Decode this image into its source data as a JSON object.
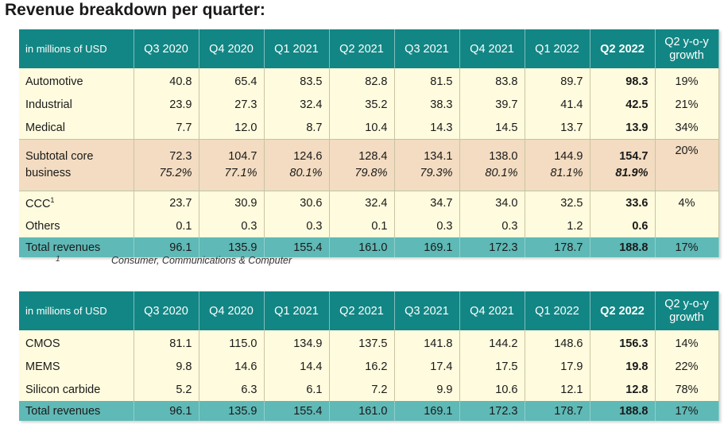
{
  "title": "Revenue breakdown per quarter:",
  "table1": {
    "corner": "in millions of USD",
    "columns": [
      "Q3 2020",
      "Q4 2020",
      "Q1 2021",
      "Q2 2021",
      "Q3 2021",
      "Q4 2021",
      "Q1 2022",
      "Q2 2022"
    ],
    "growth_header": "Q2 y-o-y growth",
    "rows": [
      {
        "label": "Automotive",
        "values": [
          "40.8",
          "65.4",
          "83.5",
          "82.8",
          "81.5",
          "83.8",
          "89.7",
          "98.3"
        ],
        "growth": "19%"
      },
      {
        "label": "Industrial",
        "values": [
          "23.9",
          "27.3",
          "32.4",
          "35.2",
          "38.3",
          "39.7",
          "41.4",
          "42.5"
        ],
        "growth": "21%"
      },
      {
        "label": "Medical",
        "values": [
          "7.7",
          "12.0",
          "8.7",
          "10.4",
          "14.3",
          "14.5",
          "13.7",
          "13.9"
        ],
        "growth": "34%"
      }
    ],
    "subtotal": {
      "label": "Subtotal core business",
      "values": [
        "72.3",
        "104.7",
        "124.6",
        "128.4",
        "134.1",
        "138.0",
        "144.9",
        "154.7"
      ],
      "shares": [
        "75.2%",
        "77.1%",
        "80.1%",
        "79.8%",
        "79.3%",
        "80.1%",
        "81.1%",
        "81.9%"
      ],
      "growth": "20%"
    },
    "rows2": [
      {
        "label": "CCC",
        "footnote": "1",
        "values": [
          "23.7",
          "30.9",
          "30.6",
          "32.4",
          "34.7",
          "34.0",
          "32.5",
          "33.6"
        ],
        "growth": "4%"
      },
      {
        "label": "Others",
        "values": [
          "0.1",
          "0.3",
          "0.3",
          "0.1",
          "0.3",
          "0.3",
          "1.2",
          "0.6"
        ],
        "growth": ""
      }
    ],
    "total": {
      "label": "Total revenues",
      "values": [
        "96.1",
        "135.9",
        "155.4",
        "161.0",
        "169.1",
        "172.3",
        "178.7",
        "188.8"
      ],
      "growth": "17%"
    }
  },
  "footnote": {
    "mark": "1",
    "text": "Consumer, Communications & Computer"
  },
  "table2": {
    "corner": "in millions of USD",
    "columns": [
      "Q3 2020",
      "Q4 2020",
      "Q1 2021",
      "Q2 2021",
      "Q3 2021",
      "Q4 2021",
      "Q1 2022",
      "Q2 2022"
    ],
    "growth_header": "Q2 y-o-y growth",
    "rows": [
      {
        "label": "CMOS",
        "values": [
          "81.1",
          "115.0",
          "134.9",
          "137.5",
          "141.8",
          "144.2",
          "148.6",
          "156.3"
        ],
        "growth": "14%"
      },
      {
        "label": "MEMS",
        "values": [
          "9.8",
          "14.6",
          "14.4",
          "16.2",
          "17.4",
          "17.5",
          "17.9",
          "19.8"
        ],
        "growth": "22%"
      },
      {
        "label": "Silicon carbide",
        "values": [
          "5.2",
          "6.3",
          "6.1",
          "7.2",
          "9.9",
          "10.6",
          "12.1",
          "12.8"
        ],
        "growth": "78%"
      }
    ],
    "total": {
      "label": "Total revenues",
      "values": [
        "96.1",
        "135.9",
        "155.4",
        "161.0",
        "169.1",
        "172.3",
        "178.7",
        "188.8"
      ],
      "growth": "17%"
    }
  }
}
